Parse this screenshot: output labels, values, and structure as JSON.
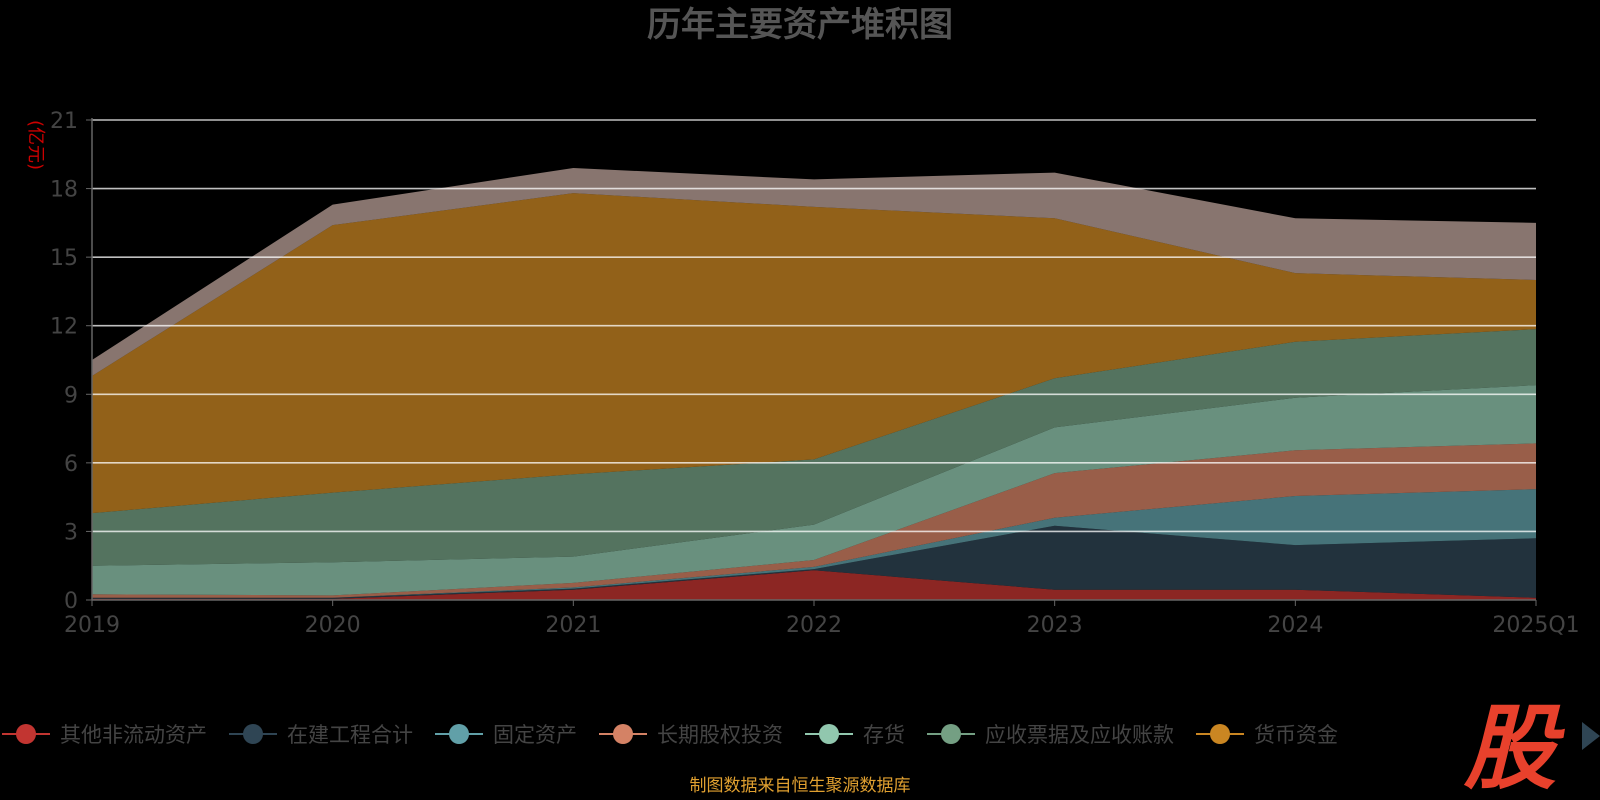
{
  "chart_data": {
    "type": "area",
    "stacked": true,
    "title": "历年主要资产堆积图",
    "ylabel": "(亿元)",
    "xlabel": "",
    "categories": [
      "2019",
      "2020",
      "2021",
      "2022",
      "2023",
      "2024",
      "2025Q1"
    ],
    "ylim": [
      0,
      21
    ],
    "yticks": [
      0,
      3,
      6,
      9,
      12,
      15,
      18,
      21
    ],
    "grid": true,
    "legend_position": "bottom",
    "series": [
      {
        "name": "其他非流动资产",
        "color": "#c23531",
        "values": [
          0.05,
          0.05,
          0.45,
          1.3,
          0.45,
          0.45,
          0.1
        ]
      },
      {
        "name": "在建工程合计",
        "color": "#2f4554",
        "values": [
          0.05,
          0.05,
          0.05,
          0.05,
          2.8,
          1.95,
          2.6
        ]
      },
      {
        "name": "固定资产",
        "color": "#61a0a8",
        "values": [
          0.0,
          0.0,
          0.05,
          0.1,
          0.35,
          2.15,
          2.15
        ]
      },
      {
        "name": "长期股权投资",
        "color": "#d48265",
        "values": [
          0.15,
          0.1,
          0.2,
          0.3,
          1.95,
          2.0,
          2.0
        ]
      },
      {
        "name": "存货",
        "color": "#91c7ae",
        "values": [
          1.25,
          1.45,
          1.15,
          1.55,
          2.0,
          2.3,
          2.55
        ]
      },
      {
        "name": "应收票据及应收账款",
        "color": "#749f83",
        "values": [
          2.3,
          3.05,
          3.6,
          2.85,
          2.15,
          2.45,
          2.45
        ]
      },
      {
        "name": "货币资金",
        "color": "#ca8622",
        "values": [
          6.0,
          11.7,
          12.3,
          11.05,
          7.0,
          3.0,
          2.15
        ]
      },
      {
        "name": "",
        "color": "#bda29a",
        "values": [
          0.7,
          0.9,
          1.1,
          1.2,
          2.0,
          2.4,
          2.5
        ]
      }
    ]
  },
  "watermark": "股",
  "source": "制图数据来自恒生聚源数据库",
  "legend_next_icon": "triangle-right-icon"
}
